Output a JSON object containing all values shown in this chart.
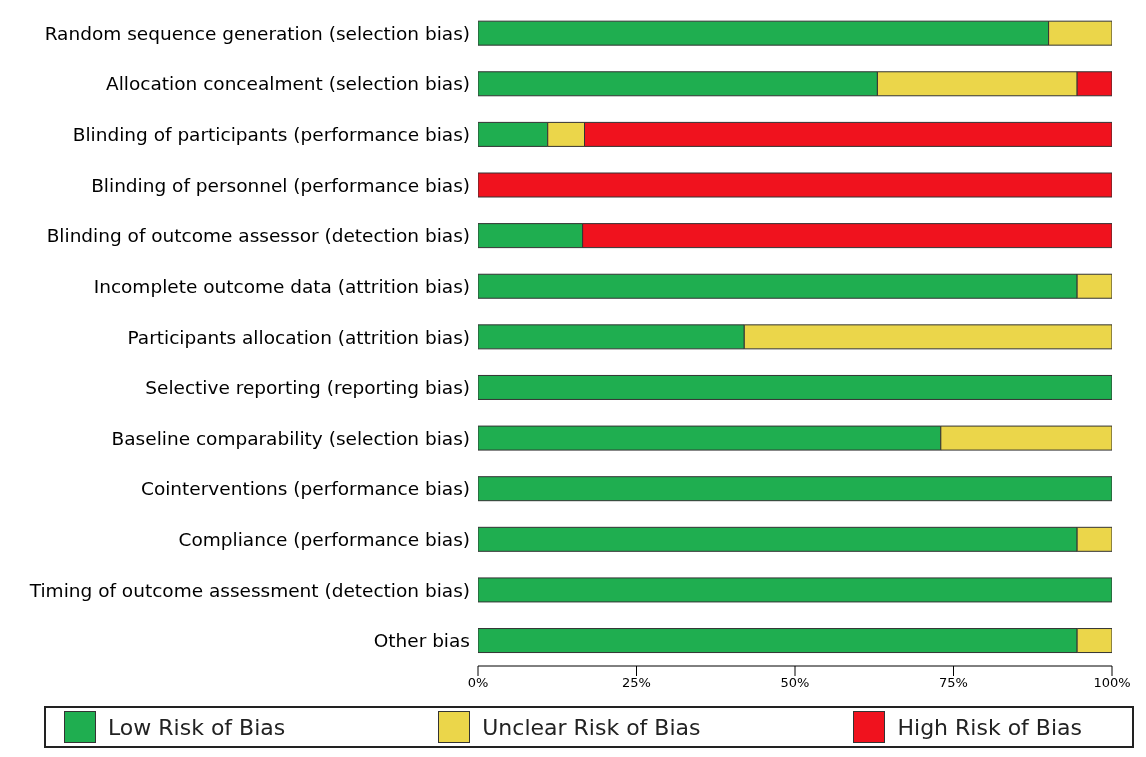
{
  "chart_data": {
    "type": "bar",
    "orientation": "horizontal",
    "stacked": true,
    "categories": [
      "Random sequence generation (selection bias)",
      "Allocation concealment (selection bias)",
      "Blinding of participants (performance bias)",
      "Blinding of personnel (performance bias)",
      "Blinding of outcome assessor (detection bias)",
      "Incomplete outcome data (attrition bias)",
      "Participants allocation (attrition bias)",
      "Selective reporting (reporting bias)",
      "Baseline comparability (selection bias)",
      "Cointerventions (performance bias)",
      "Compliance (performance bias)",
      "Timing of outcome assessment (detection bias)",
      "Other bias"
    ],
    "series": [
      {
        "name": "Low Risk of Bias",
        "color": "#1fae50",
        "values": [
          90,
          63,
          11,
          0,
          16.5,
          94.5,
          42,
          100,
          73,
          100,
          94.5,
          100,
          94.5
        ]
      },
      {
        "name": "Unclear Risk of Bias",
        "color": "#ebd64a",
        "values": [
          10,
          31.5,
          5.8,
          0,
          0,
          5.5,
          58,
          0,
          27,
          0,
          5.5,
          0,
          5.5
        ]
      },
      {
        "name": "High Risk of Bias",
        "color": "#f0121e",
        "values": [
          0,
          5.5,
          83.2,
          100,
          83.5,
          0,
          0,
          0,
          0,
          0,
          0,
          0,
          0
        ]
      }
    ],
    "xlim": [
      0,
      100
    ],
    "xticks": [
      {
        "value": 0,
        "label": "0%"
      },
      {
        "value": 25,
        "label": "25%"
      },
      {
        "value": 50,
        "label": "50%"
      },
      {
        "value": 75,
        "label": "75%"
      },
      {
        "value": 100,
        "label": "100%"
      }
    ],
    "legend": "bottom"
  }
}
